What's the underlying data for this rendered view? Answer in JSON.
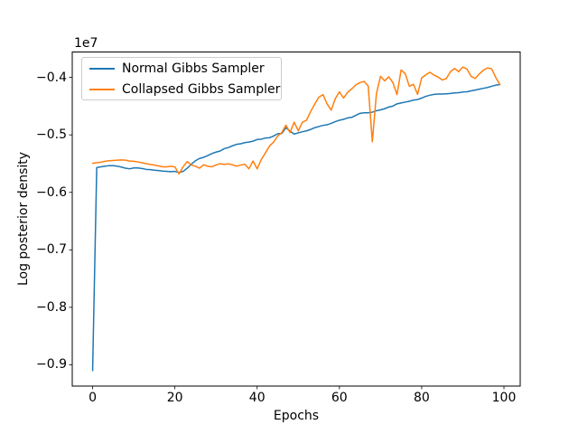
{
  "figure": {
    "background": "#ffffff"
  },
  "chart_data": {
    "type": "line",
    "title": "",
    "xlabel": "Epochs",
    "ylabel": "Log posterior density",
    "y_offset_text": "1e7",
    "y_units_note": "y values are in units of 1e7 (axis offset label)",
    "grid": false,
    "xlim": [
      -4.95,
      103.95
    ],
    "ylim": [
      -0.937,
      -0.3558
    ],
    "xticks": [
      0,
      20,
      40,
      60,
      80,
      100
    ],
    "xtick_labels": [
      "0",
      "20",
      "40",
      "60",
      "80",
      "100"
    ],
    "yticks": [
      -0.4,
      -0.5,
      -0.6,
      -0.7,
      -0.8,
      -0.9
    ],
    "ytick_labels": [
      "−0.4",
      "−0.5",
      "−0.6",
      "−0.7",
      "−0.8",
      "−0.9"
    ],
    "legend": {
      "position": "upper left",
      "entries": [
        "Normal Gibbs Sampler",
        "Collapsed Gibbs Sampler"
      ]
    },
    "line_width": 1.5,
    "axis_color": "#000000",
    "x": [
      0,
      1,
      2,
      3,
      4,
      5,
      6,
      7,
      8,
      9,
      10,
      11,
      12,
      13,
      14,
      15,
      16,
      17,
      18,
      19,
      20,
      21,
      22,
      23,
      24,
      25,
      26,
      27,
      28,
      29,
      30,
      31,
      32,
      33,
      34,
      35,
      36,
      37,
      38,
      39,
      40,
      41,
      42,
      43,
      44,
      45,
      46,
      47,
      48,
      49,
      50,
      51,
      52,
      53,
      54,
      55,
      56,
      57,
      58,
      59,
      60,
      61,
      62,
      63,
      64,
      65,
      66,
      67,
      68,
      69,
      70,
      71,
      72,
      73,
      74,
      75,
      76,
      77,
      78,
      79,
      80,
      81,
      82,
      83,
      84,
      85,
      86,
      87,
      88,
      89,
      90,
      91,
      92,
      93,
      94,
      95,
      96,
      97,
      98,
      99
    ],
    "series": [
      {
        "name": "Normal Gibbs Sampler",
        "color": "#1f77b4",
        "values": [
          -0.91,
          -0.557,
          -0.5555,
          -0.5545,
          -0.5535,
          -0.5535,
          -0.5545,
          -0.556,
          -0.558,
          -0.559,
          -0.5575,
          -0.5575,
          -0.5585,
          -0.56,
          -0.5605,
          -0.5615,
          -0.562,
          -0.563,
          -0.5635,
          -0.564,
          -0.5635,
          -0.5655,
          -0.5635,
          -0.558,
          -0.551,
          -0.545,
          -0.541,
          -0.539,
          -0.536,
          -0.5325,
          -0.53,
          -0.528,
          -0.524,
          -0.522,
          -0.519,
          -0.5165,
          -0.5155,
          -0.5135,
          -0.5125,
          -0.511,
          -0.508,
          -0.5075,
          -0.5055,
          -0.505,
          -0.502,
          -0.498,
          -0.4975,
          -0.4875,
          -0.4935,
          -0.4985,
          -0.4965,
          -0.4945,
          -0.493,
          -0.4905,
          -0.4875,
          -0.4855,
          -0.4835,
          -0.4825,
          -0.48,
          -0.477,
          -0.4745,
          -0.473,
          -0.4705,
          -0.4695,
          -0.466,
          -0.4625,
          -0.4615,
          -0.4615,
          -0.4605,
          -0.458,
          -0.4565,
          -0.4545,
          -0.4515,
          -0.45,
          -0.446,
          -0.4445,
          -0.443,
          -0.4415,
          -0.4395,
          -0.4385,
          -0.436,
          -0.433,
          -0.431,
          -0.4295,
          -0.429,
          -0.429,
          -0.4285,
          -0.428,
          -0.427,
          -0.4265,
          -0.4255,
          -0.425,
          -0.4235,
          -0.422,
          -0.4205,
          -0.419,
          -0.4175,
          -0.4155,
          -0.4135,
          -0.4125
        ]
      },
      {
        "name": "Collapsed Gibbs Sampler",
        "color": "#ff7f0e",
        "values": [
          -0.5495,
          -0.5485,
          -0.5475,
          -0.546,
          -0.545,
          -0.5445,
          -0.544,
          -0.5435,
          -0.544,
          -0.5455,
          -0.546,
          -0.547,
          -0.5485,
          -0.55,
          -0.5515,
          -0.5525,
          -0.554,
          -0.5555,
          -0.5555,
          -0.5545,
          -0.5555,
          -0.568,
          -0.5555,
          -0.5465,
          -0.5525,
          -0.5545,
          -0.558,
          -0.552,
          -0.5545,
          -0.5555,
          -0.5525,
          -0.55,
          -0.5515,
          -0.5505,
          -0.552,
          -0.5545,
          -0.5525,
          -0.551,
          -0.559,
          -0.5455,
          -0.559,
          -0.543,
          -0.5315,
          -0.5195,
          -0.5125,
          -0.502,
          -0.496,
          -0.483,
          -0.496,
          -0.478,
          -0.493,
          -0.478,
          -0.4745,
          -0.4595,
          -0.4465,
          -0.4345,
          -0.43,
          -0.446,
          -0.457,
          -0.437,
          -0.425,
          -0.436,
          -0.426,
          -0.42,
          -0.413,
          -0.409,
          -0.407,
          -0.415,
          -0.512,
          -0.428,
          -0.398,
          -0.406,
          -0.399,
          -0.409,
          -0.43,
          -0.387,
          -0.3935,
          -0.4155,
          -0.412,
          -0.4295,
          -0.401,
          -0.3955,
          -0.391,
          -0.396,
          -0.3995,
          -0.4045,
          -0.402,
          -0.39,
          -0.3845,
          -0.39,
          -0.382,
          -0.3855,
          -0.398,
          -0.402,
          -0.394,
          -0.3875,
          -0.3835,
          -0.385,
          -0.4,
          -0.4125
        ]
      }
    ]
  }
}
